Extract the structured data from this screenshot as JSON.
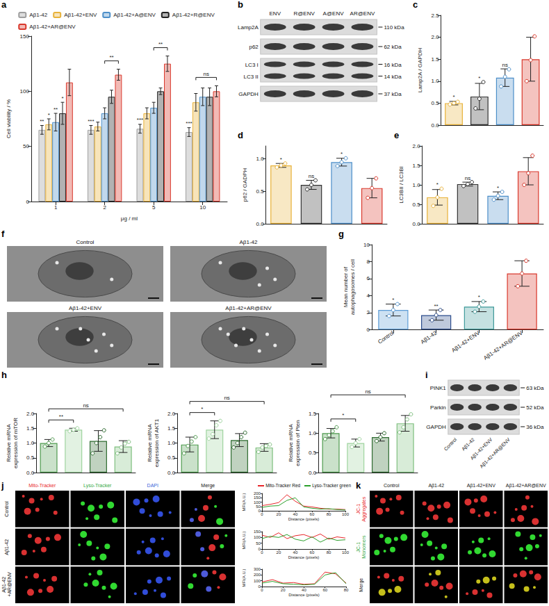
{
  "chart_data": [
    {
      "panel": "a",
      "type": "bar",
      "y_label": "Cell viability / %",
      "x_label": "μg / ml",
      "categories": [
        "1",
        "2",
        "5",
        "10"
      ],
      "ylim": [
        0,
        150
      ],
      "yticks": [
        0,
        50,
        100,
        150
      ],
      "legend": "top",
      "series": [
        {
          "name": "Aβ1-42",
          "color": "#9e9e9e",
          "values": [
            65,
            65,
            66,
            63
          ],
          "errors": [
            4,
            4,
            4,
            4
          ],
          "significance": [
            "**",
            "***",
            "***",
            "***"
          ]
        },
        {
          "name": "Aβ1-42+ENV",
          "color": "#e8b23a",
          "values": [
            70,
            68,
            80,
            90
          ],
          "errors": [
            5,
            4,
            5,
            8
          ],
          "significance": [
            "*",
            null,
            null,
            null
          ]
        },
        {
          "name": "Aβ1-42+A@ENV",
          "color": "#4d8fc9",
          "values": [
            72,
            80,
            85,
            95
          ],
          "errors": [
            8,
            5,
            5,
            8
          ],
          "significance": [
            "**",
            null,
            null,
            null
          ]
        },
        {
          "name": "Aβ1-42+R@ENV",
          "color": "#222222",
          "values": [
            80,
            95,
            100,
            95
          ],
          "errors": [
            10,
            6,
            3,
            8
          ],
          "significance": [
            "*",
            null,
            null,
            null
          ]
        },
        {
          "name": "Aβ1-42+AR@ENV",
          "color": "#d9382c",
          "values": [
            108,
            115,
            125,
            100
          ],
          "errors": [
            12,
            5,
            7,
            5
          ],
          "significance": [
            null,
            null,
            null,
            null
          ]
        }
      ],
      "brackets": [
        {
          "category": "2",
          "from": "Aβ1-42+A@ENV",
          "to": "Aβ1-42+AR@ENV",
          "text": "**"
        },
        {
          "category": "5",
          "from": "Aβ1-42+A@ENV",
          "to": "Aβ1-42+AR@ENV",
          "text": "**"
        },
        {
          "category": "10",
          "from": "Aβ1-42+ENV",
          "to": "Aβ1-42+AR@ENV",
          "text": "ns"
        }
      ]
    },
    {
      "panel": "c",
      "type": "bar",
      "y_label": "Lamp2A / GAPDH",
      "categories": [
        null,
        null,
        null,
        null
      ],
      "tick_labels": "y",
      "ylim": [
        0,
        2.5
      ],
      "yticks": [
        {
          "value": 0,
          "label": "0.0"
        },
        {
          "value": 0.5,
          "label": "0.5"
        },
        {
          "value": 1,
          "label": "1.0"
        },
        {
          "value": 1.5,
          "label": "1.5"
        },
        {
          "value": 2,
          "label": "2.0"
        },
        {
          "value": 2.5,
          "label": "2.5"
        }
      ],
      "series": [
        {
          "colors": [
            "#e8b23a",
            "#333333",
            "#4d8fc9",
            "#d9382c"
          ],
          "values": [
            0.5,
            0.65,
            1.08,
            1.5
          ],
          "errors": [
            0.04,
            0.3,
            0.2,
            0.5
          ],
          "points": [
            [
              0.47,
              0.5,
              0.53
            ],
            [
              0.38,
              0.6,
              0.98
            ],
            [
              0.88,
              1.1,
              1.27
            ],
            [
              1.0,
              1.48,
              2.02
            ]
          ],
          "significance": [
            "*",
            "*",
            "ns",
            null
          ]
        }
      ]
    },
    {
      "panel": "d",
      "type": "bar",
      "y_label": "p62 / GADPH",
      "categories": [
        null,
        null,
        null,
        null
      ],
      "tick_labels": "y",
      "ylim": [
        0,
        1.2
      ],
      "yticks": [
        {
          "value": 0,
          "label": "0.0"
        },
        {
          "value": 0.5,
          "label": "0.5"
        },
        {
          "value": 1,
          "label": "1.0"
        }
      ],
      "series": [
        {
          "colors": [
            "#e8b23a",
            "#333333",
            "#4d8fc9",
            "#d9382c"
          ],
          "values": [
            0.9,
            0.6,
            0.95,
            0.55
          ],
          "errors": [
            0.03,
            0.07,
            0.06,
            0.15
          ],
          "points": [
            [
              0.87,
              0.9,
              0.93
            ],
            [
              0.53,
              0.6,
              0.67
            ],
            [
              0.89,
              0.95,
              1.01
            ],
            [
              0.4,
              0.55,
              0.7
            ]
          ],
          "significance": [
            "*",
            "ns",
            "*",
            null
          ]
        }
      ]
    },
    {
      "panel": "e",
      "type": "bar",
      "y_label": "LC3BII / LC3BI",
      "categories": [
        null,
        null,
        null,
        null
      ],
      "tick_labels": "y",
      "ylim": [
        0,
        2
      ],
      "yticks": [
        {
          "value": 0,
          "label": "0.0"
        },
        {
          "value": 0.5,
          "label": "0.5"
        },
        {
          "value": 1,
          "label": "1.0"
        },
        {
          "value": 1.5,
          "label": "1.5"
        },
        {
          "value": 2,
          "label": "2.0"
        }
      ],
      "series": [
        {
          "colors": [
            "#e8b23a",
            "#333333",
            "#4d8fc9",
            "#d9382c"
          ],
          "values": [
            0.68,
            1.02,
            0.72,
            1.35
          ],
          "errors": [
            0.2,
            0.05,
            0.1,
            0.35
          ],
          "points": [
            [
              0.46,
              0.68,
              0.9
            ],
            [
              0.97,
              1.02,
              1.07
            ],
            [
              0.62,
              0.72,
              0.82
            ],
            [
              1.0,
              1.3,
              1.75
            ]
          ],
          "significance": [
            "*",
            "ns",
            "*",
            null
          ]
        }
      ]
    },
    {
      "panel": "g",
      "type": "bar",
      "y_label": "Mean number of autophagosomes / cell",
      "categories": [
        "Control",
        "Aβ1-42",
        "Aβ1-42+ENV",
        "Aβ1-42+AR@ENV"
      ],
      "ylim": [
        0,
        10
      ],
      "yticks": [
        0,
        2,
        4,
        6,
        8,
        10
      ],
      "series": [
        {
          "colors": [
            "#5b9bd5",
            "#2c4c8c",
            "#3f9a9a",
            "#d9382c"
          ],
          "values": [
            2.3,
            1.7,
            2.7,
            6.6
          ],
          "errors": [
            0.7,
            0.6,
            0.6,
            1.5
          ],
          "points": [
            [
              1.6,
              2.3,
              3.0
            ],
            [
              1.1,
              1.7,
              2.3
            ],
            [
              2.1,
              2.7,
              3.3
            ],
            [
              5.1,
              6.6,
              8.1
            ]
          ],
          "significance": [
            "*",
            "**",
            "*",
            null
          ]
        }
      ]
    },
    {
      "panel": "h",
      "type": "bar",
      "y_label": "Relative mRNA expression of mTOR",
      "categories": [
        null,
        null,
        null,
        null
      ],
      "tick_labels": "y",
      "ylim": [
        0,
        2
      ],
      "yticks": [
        {
          "value": 0,
          "label": "0.0"
        },
        {
          "value": 0.5,
          "label": "0.5"
        },
        {
          "value": 1,
          "label": "1.0"
        },
        {
          "value": 1.5,
          "label": "1.5"
        },
        {
          "value": 2,
          "label": "2.0"
        }
      ],
      "series": [
        {
          "colors": [
            "#4e9a4e",
            "#9fd49f",
            "#2e6b30",
            "#7fbf7f"
          ],
          "values": [
            1.0,
            1.45,
            1.07,
            0.88
          ],
          "errors": [
            0.12,
            0.05,
            0.35,
            0.2
          ],
          "points": [
            [
              0.88,
              1.0,
              1.12
            ],
            [
              1.4,
              1.45,
              1.5
            ],
            [
              0.65,
              1.0,
              1.2,
              1.43
            ],
            [
              0.65,
              0.85,
              0.98,
              1.04
            ]
          ]
        }
      ],
      "brackets": [
        {
          "from": 0,
          "to": 1,
          "text": "**"
        },
        {
          "from": 0,
          "to": 3,
          "text": "ns"
        }
      ]
    },
    {
      "type": "bar",
      "y_label": "Relative mRNA expression of AKT1",
      "categories": [
        null,
        null,
        null,
        null
      ],
      "tick_labels": "y",
      "ylim": [
        0,
        2
      ],
      "yticks": [
        {
          "value": 0,
          "label": "0.0"
        },
        {
          "value": 0.5,
          "label": "0.5"
        },
        {
          "value": 1,
          "label": "1.0"
        },
        {
          "value": 1.5,
          "label": "1.5"
        },
        {
          "value": 2,
          "label": "2.0"
        }
      ],
      "series": [
        {
          "colors": [
            "#4e9a4e",
            "#9fd49f",
            "#2e6b30",
            "#7fbf7f"
          ],
          "values": [
            0.95,
            1.45,
            1.1,
            0.85
          ],
          "errors": [
            0.25,
            0.3,
            0.22,
            0.13
          ],
          "points": [
            [
              0.65,
              0.9,
              1.05,
              1.2
            ],
            [
              1.15,
              1.3,
              1.6,
              1.75
            ],
            [
              0.85,
              1.0,
              1.2,
              1.35
            ],
            [
              0.7,
              0.85,
              0.9,
              0.95
            ]
          ]
        }
      ],
      "brackets": [
        {
          "from": 0,
          "to": 1,
          "text": "*"
        },
        {
          "from": 0,
          "to": 3,
          "text": "ns"
        }
      ]
    },
    {
      "type": "bar",
      "y_label": "Relative mRNA expression of Pten",
      "categories": [
        null,
        null,
        null,
        null
      ],
      "tick_labels": "y",
      "ylim": [
        0,
        1.5
      ],
      "yticks": [
        {
          "value": 0,
          "label": "0.0"
        },
        {
          "value": 0.5,
          "label": "0.5"
        },
        {
          "value": 1,
          "label": "1.0"
        },
        {
          "value": 1.5,
          "label": "1.5"
        }
      ],
      "series": [
        {
          "colors": [
            "#4e9a4e",
            "#9fd49f",
            "#2e6b30",
            "#7fbf7f"
          ],
          "values": [
            1.0,
            0.75,
            0.9,
            1.25
          ],
          "errors": [
            0.12,
            0.1,
            0.1,
            0.2
          ],
          "points": [
            [
              0.85,
              0.95,
              1.05,
              1.15
            ],
            [
              0.65,
              0.75,
              0.85
            ],
            [
              0.8,
              0.9,
              1.0
            ],
            [
              1.02,
              1.15,
              1.35,
              1.48
            ]
          ]
        }
      ],
      "brackets": [
        {
          "from": 0,
          "to": 1,
          "text": "*"
        },
        {
          "from": 0,
          "to": 3,
          "text": "ns"
        }
      ]
    },
    {
      "type": "line",
      "x_label": "Distance (pixels)",
      "y_label": "MFI(A.U.)",
      "legend": "top",
      "x": [
        0,
        10,
        20,
        30,
        40,
        50,
        60,
        70,
        80,
        90,
        100
      ],
      "xlim": [
        0,
        100
      ],
      "xticks": [
        0,
        20,
        40,
        60,
        80,
        100
      ],
      "ylim": [
        0,
        200
      ],
      "yticks": [
        0,
        50,
        100,
        150,
        200
      ],
      "series": [
        {
          "name": "Mito-Tracker Red",
          "color": "#e8262a",
          "values": [
            60,
            75,
            95,
            185,
            110,
            55,
            45,
            30,
            20,
            20,
            15
          ]
        },
        {
          "name": "Lyso-Tracker green",
          "color": "#2ca02c",
          "values": [
            40,
            55,
            60,
            120,
            150,
            45,
            30,
            20,
            25,
            15,
            10
          ]
        }
      ]
    },
    {
      "type": "line",
      "x_label": "Distance (pixels)",
      "y_label": "MFI(A.U.)",
      "x": [
        0,
        10,
        20,
        30,
        40,
        50,
        60,
        70,
        80,
        90,
        100
      ],
      "xlim": [
        0,
        100
      ],
      "xticks": [
        0,
        20,
        40,
        60,
        80,
        100
      ],
      "ylim": [
        0,
        150
      ],
      "yticks": [
        0,
        50,
        100,
        150
      ],
      "series": [
        {
          "name": "Mito-Tracker Red",
          "color": "#e8262a",
          "values": [
            120,
            100,
            140,
            90,
            115,
            125,
            100,
            130,
            85,
            105,
            95
          ]
        },
        {
          "name": "Lyso-Tracker green",
          "color": "#2ca02c",
          "values": [
            90,
            110,
            100,
            125,
            85,
            70,
            105,
            60,
            95,
            75,
            80
          ]
        }
      ]
    },
    {
      "type": "line",
      "x_label": "Distance (pixels)",
      "y_label": "MFI(A.U.)",
      "x": [
        0,
        10,
        20,
        30,
        40,
        50,
        60,
        70,
        80
      ],
      "xlim": [
        0,
        80
      ],
      "xticks": [
        0,
        20,
        40,
        60,
        80
      ],
      "ylim": [
        0,
        300
      ],
      "yticks": [
        0,
        100,
        200,
        300
      ],
      "series": [
        {
          "name": "Mito-Tracker Red",
          "color": "#e8262a",
          "values": [
            80,
            120,
            60,
            70,
            40,
            50,
            250,
            220,
            60
          ]
        },
        {
          "name": "Lyso-Tracker green",
          "color": "#2ca02c",
          "values": [
            60,
            90,
            50,
            40,
            30,
            40,
            200,
            240,
            50
          ]
        }
      ]
    }
  ],
  "image_panels": [
    {
      "panel": "b",
      "type": "blot",
      "lanes": [
        "ENV",
        "R@ENV",
        "A@ENV",
        "AR@ENV"
      ],
      "rows": [
        {
          "labels": [
            "Lamp2A"
          ],
          "sizes": [
            "110 kDa"
          ]
        },
        {
          "labels": [
            "p62"
          ],
          "sizes": [
            "62 kDa"
          ]
        },
        {
          "labels": [
            "LC3 I",
            "LC3 II"
          ],
          "sizes": [
            "16 kDa",
            "14 kDa"
          ]
        },
        {
          "labels": [
            "GAPDH"
          ],
          "sizes": [
            "37 kDa"
          ]
        }
      ]
    },
    {
      "panel": "f",
      "type": "micrographs",
      "titles": [
        "Control",
        "Aβ1-42",
        "Aβ1-42+ENV",
        "Aβ1-42+AR@ENV"
      ]
    },
    {
      "panel": "i",
      "type": "blot",
      "lanes": [
        "Control",
        "Aβ1-42",
        "Aβ1-42+ENV",
        "Aβ1-42+AR@ENV"
      ],
      "rows": [
        {
          "labels": [
            "PINK1"
          ],
          "sizes": [
            "63 kDa"
          ]
        },
        {
          "labels": [
            "Parkin"
          ],
          "sizes": [
            "52 kDa"
          ]
        },
        {
          "labels": [
            "GAPDH"
          ],
          "sizes": [
            "36 kDa"
          ]
        }
      ]
    },
    {
      "panel": "j",
      "type": "fluorescence",
      "columns": [
        "Mito-Tracker",
        "Lyso-Tracker",
        "DAPI",
        "Merge"
      ],
      "rows": [
        "Control",
        "Aβ1-42",
        "Aβ1-42 +AR@ENV"
      ]
    },
    {
      "panel": "k",
      "type": "fluorescence",
      "columns": [
        "Control",
        "Aβ1-42",
        "Aβ1-42+ENV",
        "Aβ1-42+AR@ENV"
      ],
      "rows": [
        "JC-1 Aggregates",
        "JC-1 Monomers",
        "Merge"
      ]
    }
  ]
}
